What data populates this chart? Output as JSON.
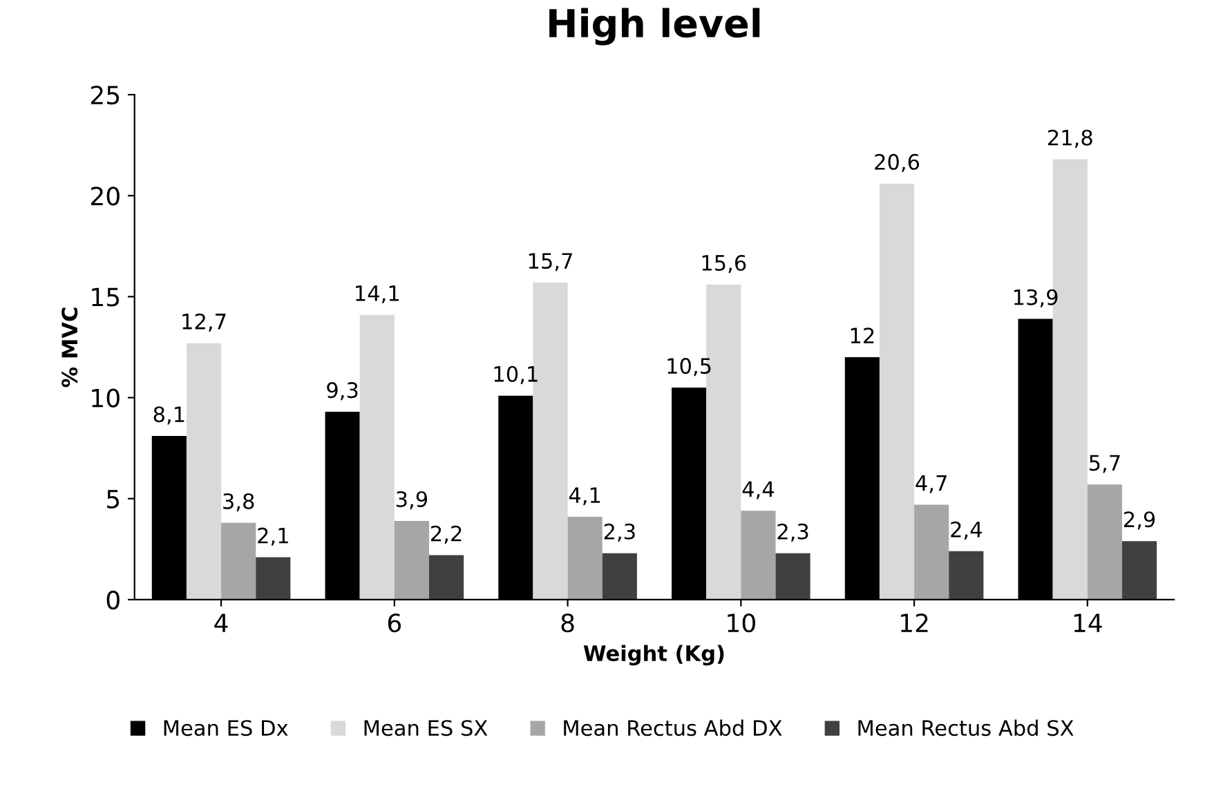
{
  "chart_data": {
    "type": "bar",
    "title": "High level",
    "xlabel": "Weight (Kg)",
    "ylabel": "% MVC",
    "categories": [
      "4",
      "6",
      "8",
      "10",
      "12",
      "14"
    ],
    "series": [
      {
        "name": "Mean ES Dx",
        "color": "#000000",
        "values": [
          8.1,
          9.3,
          10.1,
          10.5,
          12,
          13.9
        ],
        "value_labels": [
          "8,1",
          "9,3",
          "10,1",
          "10,5",
          "12",
          "13,9"
        ]
      },
      {
        "name": "Mean ES SX",
        "color": "#d9d9d9",
        "values": [
          12.7,
          14.1,
          15.7,
          15.6,
          20.6,
          21.8
        ],
        "value_labels": [
          "12,7",
          "14,1",
          "15,7",
          "15,6",
          "20,6",
          "21,8"
        ]
      },
      {
        "name": "Mean Rectus Abd DX",
        "color": "#a6a6a6",
        "values": [
          3.8,
          3.9,
          4.1,
          4.4,
          4.7,
          5.7
        ],
        "value_labels": [
          "3,8",
          "3,9",
          "4,1",
          "4,4",
          "4,7",
          "5,7"
        ]
      },
      {
        "name": "Mean Rectus Abd SX",
        "color": "#404040",
        "values": [
          2.1,
          2.2,
          2.3,
          2.3,
          2.4,
          2.9
        ],
        "value_labels": [
          "2,1",
          "2,2",
          "2,3",
          "2,3",
          "2,4",
          "2,9"
        ]
      }
    ],
    "ylim": [
      0,
      25
    ],
    "yticks": [
      0,
      5,
      10,
      15,
      20,
      25
    ],
    "grid": false,
    "legend": "bottom"
  }
}
